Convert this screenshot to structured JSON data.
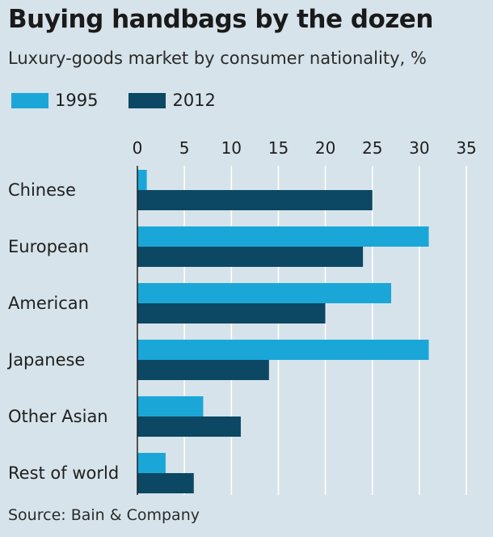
{
  "header": {
    "title": "Buying handbags by the dozen",
    "subtitle": "Luxury-goods market by consumer nationality, %"
  },
  "legend": {
    "items": [
      {
        "label": "1995",
        "color": "#1aa7d8"
      },
      {
        "label": "2012",
        "color": "#0c4863"
      }
    ]
  },
  "footer": {
    "source": "Source: Bain & Company"
  },
  "chart_data": {
    "type": "bar",
    "orientation": "horizontal",
    "title": "Buying handbags by the dozen",
    "subtitle": "Luxury-goods market by consumer nationality, %",
    "categories": [
      "Chinese",
      "European",
      "American",
      "Japanese",
      "Other Asian",
      "Rest of world"
    ],
    "series": [
      {
        "name": "1995",
        "color": "#1aa7d8",
        "values": [
          1,
          31,
          27,
          31,
          7,
          3
        ]
      },
      {
        "name": "2012",
        "color": "#0c4863",
        "values": [
          25,
          24,
          20,
          14,
          11,
          6
        ]
      }
    ],
    "xlim": [
      0,
      35
    ],
    "xticks": [
      0,
      5,
      10,
      15,
      20,
      25,
      30,
      35
    ],
    "legend_position": "top-left",
    "grid": true,
    "source": "Source: Bain & Company"
  }
}
